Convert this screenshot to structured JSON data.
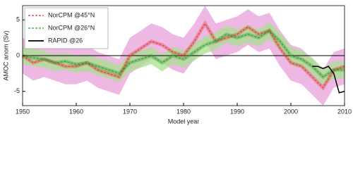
{
  "chart_data": {
    "type": "line",
    "xlabel": "Model year",
    "ylabel": "AMOC anom (Sv)",
    "xlim": [
      1950,
      2010
    ],
    "xticks": [
      1950,
      1960,
      1970,
      1980,
      1990,
      2000,
      2010
    ],
    "ylim": [
      -7,
      7
    ],
    "yticks": [
      -5,
      0,
      5
    ],
    "zero_line": true,
    "legend": "upper left",
    "series": [
      {
        "name": "NorCPM @45°N",
        "color": "#e0302a",
        "band_color": "#e8a0dc",
        "dashed": true,
        "x": [
          1950,
          1952,
          1954,
          1956,
          1958,
          1960,
          1962,
          1964,
          1966,
          1968,
          1970,
          1972,
          1974,
          1976,
          1978,
          1980,
          1982,
          1984,
          1986,
          1988,
          1990,
          1992,
          1994,
          1996,
          1998,
          2000,
          2002,
          2004,
          2006,
          2008,
          2010
        ],
        "values": [
          0,
          -1,
          -0.5,
          -1,
          -1.5,
          -1.5,
          -1,
          -2,
          -2.5,
          -3,
          0,
          1,
          2,
          1.5,
          0.5,
          0,
          2,
          4.5,
          2,
          2.5,
          3,
          4,
          3,
          3.5,
          1,
          -1,
          -1.5,
          -3,
          -4.5,
          -2,
          -1.5
        ],
        "lower": [
          -2.5,
          -3.5,
          -3,
          -3.5,
          -4,
          -4,
          -3.5,
          -4.5,
          -5,
          -5.5,
          -2.5,
          -1.5,
          -0.5,
          -1,
          -2,
          -2.5,
          -0.5,
          2,
          -0.5,
          0,
          0.5,
          1.5,
          0.5,
          1,
          -1.5,
          -3.5,
          -4,
          -5.5,
          -7,
          -4.5,
          -4
        ],
        "upper": [
          2.5,
          1.5,
          2,
          1.5,
          1,
          1,
          1.5,
          0.5,
          0,
          -0.5,
          2.5,
          3.5,
          4.5,
          4,
          3,
          2.5,
          4.5,
          7,
          4.5,
          5,
          5.5,
          6.5,
          5.5,
          6,
          3.5,
          1.5,
          1,
          -0.5,
          -2,
          0.5,
          1
        ]
      },
      {
        "name": "NorCPM @26°N",
        "color": "#2a9a2a",
        "band_color": "#a8e08e",
        "dashed": true,
        "x": [
          1950,
          1952,
          1954,
          1956,
          1958,
          1960,
          1962,
          1964,
          1966,
          1968,
          1970,
          1972,
          1974,
          1976,
          1978,
          1980,
          1982,
          1984,
          1986,
          1988,
          1990,
          1992,
          1994,
          1996,
          1998,
          2000,
          2002,
          2004,
          2006,
          2008,
          2010
        ],
        "values": [
          0,
          -0.3,
          -0.5,
          -1,
          -0.8,
          -1.2,
          -1,
          -1.5,
          -2,
          -2.5,
          -1,
          -0.5,
          0,
          -1,
          0,
          -0.5,
          0.5,
          1.5,
          2,
          3,
          2.5,
          3,
          2.5,
          3.5,
          2,
          0,
          -0.5,
          -1.5,
          -3,
          -2,
          -2
        ],
        "lower": [
          -1.2,
          -1.5,
          -1.7,
          -2.2,
          -2,
          -2.4,
          -2.2,
          -2.7,
          -3.2,
          -3.7,
          -2.2,
          -1.7,
          -1.2,
          -2.2,
          -1.2,
          -1.7,
          -0.7,
          0.3,
          0.8,
          1.8,
          1.3,
          1.8,
          1.3,
          2.3,
          0.8,
          -1.2,
          -1.7,
          -2.7,
          -4.2,
          -3.2,
          -3.2
        ],
        "upper": [
          1.2,
          0.9,
          0.7,
          0.2,
          0.4,
          0,
          0.2,
          -0.3,
          -0.8,
          -1.3,
          0.2,
          0.7,
          1.2,
          0.2,
          1.2,
          0.7,
          1.7,
          2.7,
          3.2,
          4.2,
          3.7,
          4.2,
          3.7,
          4.7,
          3.2,
          1.2,
          0.7,
          -0.3,
          -1.8,
          -0.8,
          -0.8
        ]
      },
      {
        "name": "RAPID @26",
        "color": "#000000",
        "dashed": false,
        "x": [
          2004,
          2005,
          2006,
          2007,
          2008,
          2009,
          2010
        ],
        "values": [
          -1.5,
          -1.5,
          -1.8,
          -1.5,
          -2.5,
          -5.2,
          -5
        ]
      }
    ]
  }
}
